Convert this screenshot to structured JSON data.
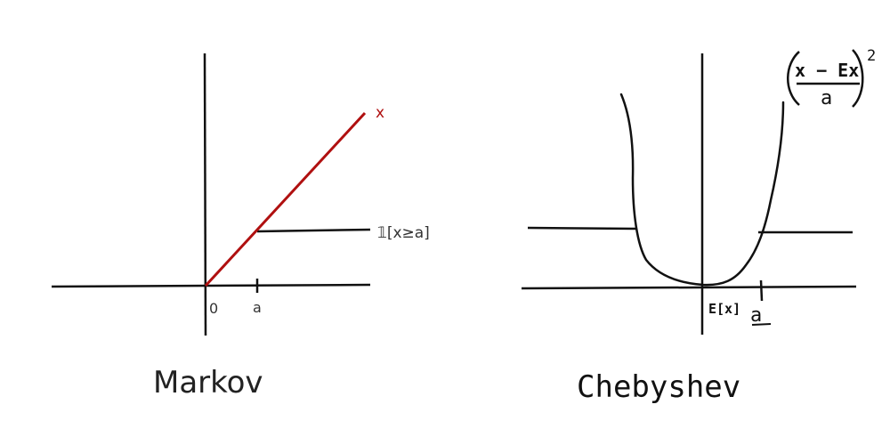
{
  "colors": {
    "ink": "#111111",
    "red": "#b01010",
    "label_gray": "#333333"
  },
  "markov": {
    "title": "Markov",
    "x_label": "x",
    "indicator_label": "𝟙[x≥a]",
    "tick_zero": "0",
    "tick_a": "a"
  },
  "chebyshev": {
    "title": "Chebyshev",
    "tick_ex": "E[x]",
    "tick_a": "a",
    "formula_numerator": "x − Ex",
    "formula_denominator": "a",
    "formula_exponent": "2"
  }
}
